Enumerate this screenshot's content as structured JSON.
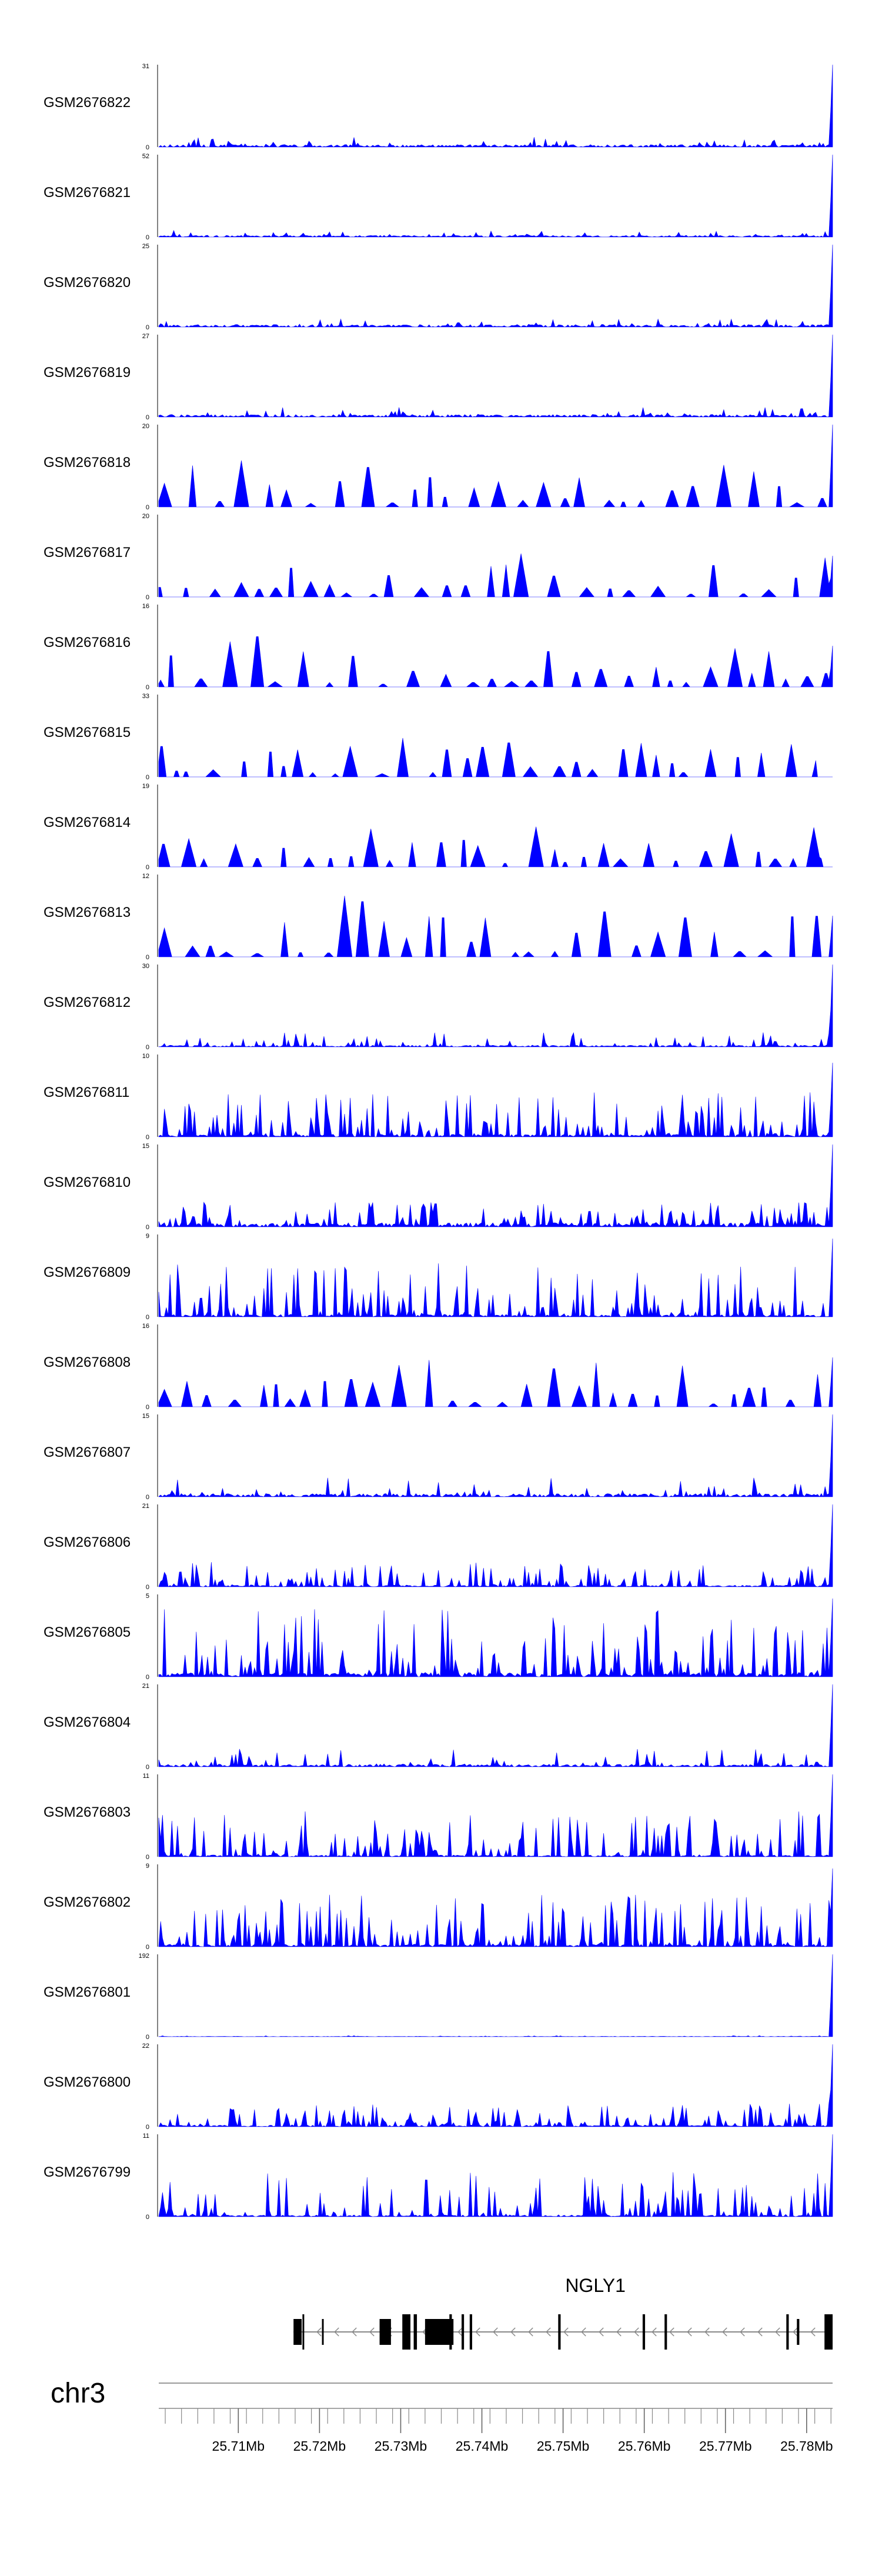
{
  "chart_data": {
    "type": "area",
    "title": "",
    "xlabel": "",
    "ylabel": "",
    "colors": {
      "signal": "#0000ff",
      "gene": "#000000",
      "intron": "#888888"
    },
    "chromosome": "chr3",
    "x_range": [
      25.7002,
      25.7832
    ],
    "x_ticks": [
      "25.71Mb",
      "25.72Mb",
      "25.73Mb",
      "25.74Mb",
      "25.75Mb",
      "25.76Mb",
      "25.77Mb",
      "25.78Mb"
    ],
    "x_tick_values": [
      25.71,
      25.72,
      25.73,
      25.74,
      25.75,
      25.76,
      25.77,
      25.78
    ],
    "grid": false,
    "legend": "none",
    "series": [
      {
        "name": "GSM2676822",
        "ymax": "31",
        "ymin": "0",
        "max": 31,
        "peak": 0.12,
        "bg": 0.03,
        "end": 1.0,
        "stop": 1.0,
        "style": "sparse",
        "seed": 22
      },
      {
        "name": "GSM2676821",
        "ymax": "52",
        "ymin": "0",
        "max": 52,
        "peak": 0.08,
        "bg": 0.02,
        "end": 1.0,
        "stop": 1.0,
        "style": "sparse",
        "seed": 21
      },
      {
        "name": "GSM2676820",
        "ymax": "25",
        "ymin": "0",
        "max": 25,
        "peak": 0.1,
        "bg": 0.03,
        "end": 1.0,
        "stop": 1.0,
        "style": "sparse",
        "seed": 20
      },
      {
        "name": "GSM2676819",
        "ymax": "27",
        "ymin": "0",
        "max": 27,
        "peak": 0.12,
        "bg": 0.03,
        "end": 1.0,
        "stop": 1.0,
        "style": "sparse",
        "seed": 19
      },
      {
        "name": "GSM2676818",
        "ymax": "20",
        "ymin": "0",
        "max": 20,
        "peak": 0.55,
        "bg": 0.0,
        "end": 1.0,
        "stop": 1.0,
        "style": "triangle",
        "seed": 18
      },
      {
        "name": "GSM2676817",
        "ymax": "20",
        "ymin": "0",
        "max": 20,
        "peak": 0.6,
        "bg": 0.0,
        "end": 0.5,
        "stop": 1.0,
        "style": "triangle",
        "seed": 17
      },
      {
        "name": "GSM2676816",
        "ymax": "16",
        "ymin": "0",
        "max": 16,
        "peak": 0.7,
        "bg": 0.0,
        "end": 0.5,
        "stop": 1.0,
        "style": "triangle",
        "seed": 16
      },
      {
        "name": "GSM2676815",
        "ymax": "33",
        "ymin": "0",
        "max": 33,
        "peak": 0.45,
        "bg": 0.0,
        "end": 0.2,
        "stop": 0.975,
        "style": "triangle",
        "seed": 15
      },
      {
        "name": "GSM2676814",
        "ymax": "19",
        "ymin": "0",
        "max": 19,
        "peak": 0.45,
        "bg": 0.0,
        "end": 0.1,
        "stop": 0.985,
        "style": "triangle",
        "seed": 14
      },
      {
        "name": "GSM2676813",
        "ymax": "12",
        "ymin": "0",
        "max": 12,
        "peak": 0.85,
        "bg": 0.0,
        "end": 0.5,
        "stop": 1.0,
        "style": "triangle",
        "seed": 13
      },
      {
        "name": "GSM2676812",
        "ymax": "30",
        "ymin": "0",
        "max": 30,
        "peak": 0.18,
        "bg": 0.02,
        "end": 1.0,
        "stop": 1.0,
        "style": "sparse",
        "seed": 12
      },
      {
        "name": "GSM2676811",
        "ymax": "10",
        "ymin": "0",
        "max": 10,
        "peak": 0.55,
        "bg": 0.03,
        "end": 0.9,
        "stop": 1.0,
        "style": "dense",
        "seed": 11
      },
      {
        "name": "GSM2676810",
        "ymax": "15",
        "ymin": "0",
        "max": 15,
        "peak": 0.3,
        "bg": 0.05,
        "end": 1.0,
        "stop": 1.0,
        "style": "dense",
        "seed": 10
      },
      {
        "name": "GSM2676809",
        "ymax": "9",
        "ymin": "0",
        "max": 9,
        "peak": 0.65,
        "bg": 0.03,
        "end": 0.95,
        "stop": 1.0,
        "style": "dense",
        "seed": 9
      },
      {
        "name": "GSM2676808",
        "ymax": "16",
        "ymin": "0",
        "max": 16,
        "peak": 0.6,
        "bg": 0.0,
        "end": 0.6,
        "stop": 1.0,
        "style": "triangle",
        "seed": 8
      },
      {
        "name": "GSM2676807",
        "ymax": "15",
        "ymin": "0",
        "max": 15,
        "peak": 0.25,
        "bg": 0.04,
        "end": 1.0,
        "stop": 1.0,
        "style": "sparse",
        "seed": 7
      },
      {
        "name": "GSM2676806",
        "ymax": "21",
        "ymin": "0",
        "max": 21,
        "peak": 0.3,
        "bg": 0.02,
        "end": 1.0,
        "stop": 1.0,
        "style": "dense",
        "seed": 6
      },
      {
        "name": "GSM2676805",
        "ymax": "5",
        "ymin": "0",
        "max": 5,
        "peak": 0.85,
        "bg": 0.05,
        "end": 0.95,
        "stop": 1.0,
        "style": "dense",
        "seed": 5
      },
      {
        "name": "GSM2676804",
        "ymax": "21",
        "ymin": "0",
        "max": 21,
        "peak": 0.22,
        "bg": 0.03,
        "end": 1.0,
        "stop": 1.0,
        "style": "sparse",
        "seed": 4
      },
      {
        "name": "GSM2676803",
        "ymax": "11",
        "ymin": "0",
        "max": 11,
        "peak": 0.55,
        "bg": 0.02,
        "end": 1.0,
        "stop": 1.0,
        "style": "dense",
        "seed": 3
      },
      {
        "name": "GSM2676802",
        "ymax": "9",
        "ymin": "0",
        "max": 9,
        "peak": 0.65,
        "bg": 0.03,
        "end": 0.95,
        "stop": 1.0,
        "style": "dense",
        "seed": 2
      },
      {
        "name": "GSM2676801",
        "ymax": "192",
        "ymin": "0",
        "max": 192,
        "peak": 0.015,
        "bg": 0.005,
        "end": 1.0,
        "stop": 1.0,
        "style": "sparse",
        "seed": 1
      },
      {
        "name": "GSM2676800",
        "ymax": "22",
        "ymin": "0",
        "max": 22,
        "peak": 0.28,
        "bg": 0.02,
        "end": 1.0,
        "stop": 1.0,
        "style": "dense",
        "seed": 100
      },
      {
        "name": "GSM2676799",
        "ymax": "11",
        "ymin": "0",
        "max": 11,
        "peak": 0.55,
        "bg": 0.02,
        "end": 1.0,
        "stop": 1.0,
        "style": "dense",
        "seed": 99
      }
    ],
    "gene": {
      "name": "NGLY1",
      "strand": "-",
      "start": 25.7168,
      "end": 25.7832,
      "exons": [
        {
          "start": 25.7168,
          "end": 25.7178,
          "tall": false
        },
        {
          "start": 25.7179,
          "end": 25.7181,
          "tall": true
        },
        {
          "start": 25.7203,
          "end": 25.7205,
          "tall": false
        },
        {
          "start": 25.7274,
          "end": 25.7288,
          "tall": false
        },
        {
          "start": 25.7302,
          "end": 25.7312,
          "tall": true
        },
        {
          "start": 25.7316,
          "end": 25.732,
          "tall": true
        },
        {
          "start": 25.733,
          "end": 25.7365,
          "tall": false
        },
        {
          "start": 25.736,
          "end": 25.7363,
          "tall": true
        },
        {
          "start": 25.7375,
          "end": 25.7378,
          "tall": true
        },
        {
          "start": 25.7385,
          "end": 25.7388,
          "tall": true
        },
        {
          "start": 25.7494,
          "end": 25.7497,
          "tall": true
        },
        {
          "start": 25.7598,
          "end": 25.7601,
          "tall": true
        },
        {
          "start": 25.7625,
          "end": 25.7628,
          "tall": true
        },
        {
          "start": 25.7775,
          "end": 25.7778,
          "tall": true
        },
        {
          "start": 25.7788,
          "end": 25.7791,
          "tall": false
        },
        {
          "start": 25.7822,
          "end": 25.7832,
          "tall": true
        }
      ]
    }
  }
}
